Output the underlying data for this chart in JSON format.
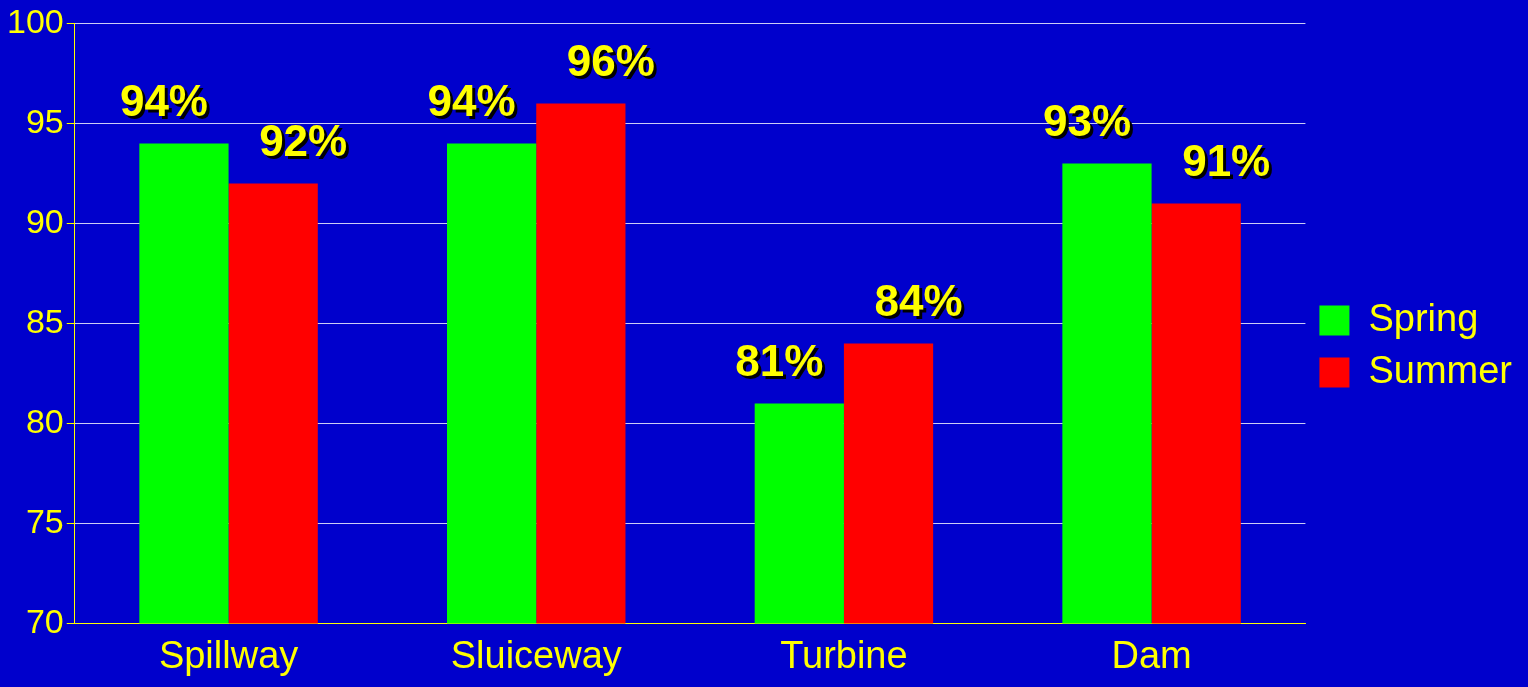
{
  "chart_data": {
    "type": "bar",
    "categories": [
      "Spillway",
      "Sluiceway",
      "Turbine",
      "Dam"
    ],
    "series": [
      {
        "name": "Spring",
        "color": "#00ff00",
        "values": [
          94,
          94,
          81,
          93
        ],
        "value_labels": [
          "94%",
          "94%",
          "81%",
          "93%"
        ]
      },
      {
        "name": "Summer",
        "color": "#ff0000",
        "values": [
          92,
          96,
          84,
          91
        ],
        "value_labels": [
          "92%",
          "96%",
          "84%",
          "91%"
        ]
      }
    ],
    "ylim": [
      70,
      100
    ],
    "yticks": [
      70,
      75,
      80,
      85,
      90,
      95,
      100
    ],
    "grid": "y",
    "legend": "right"
  }
}
